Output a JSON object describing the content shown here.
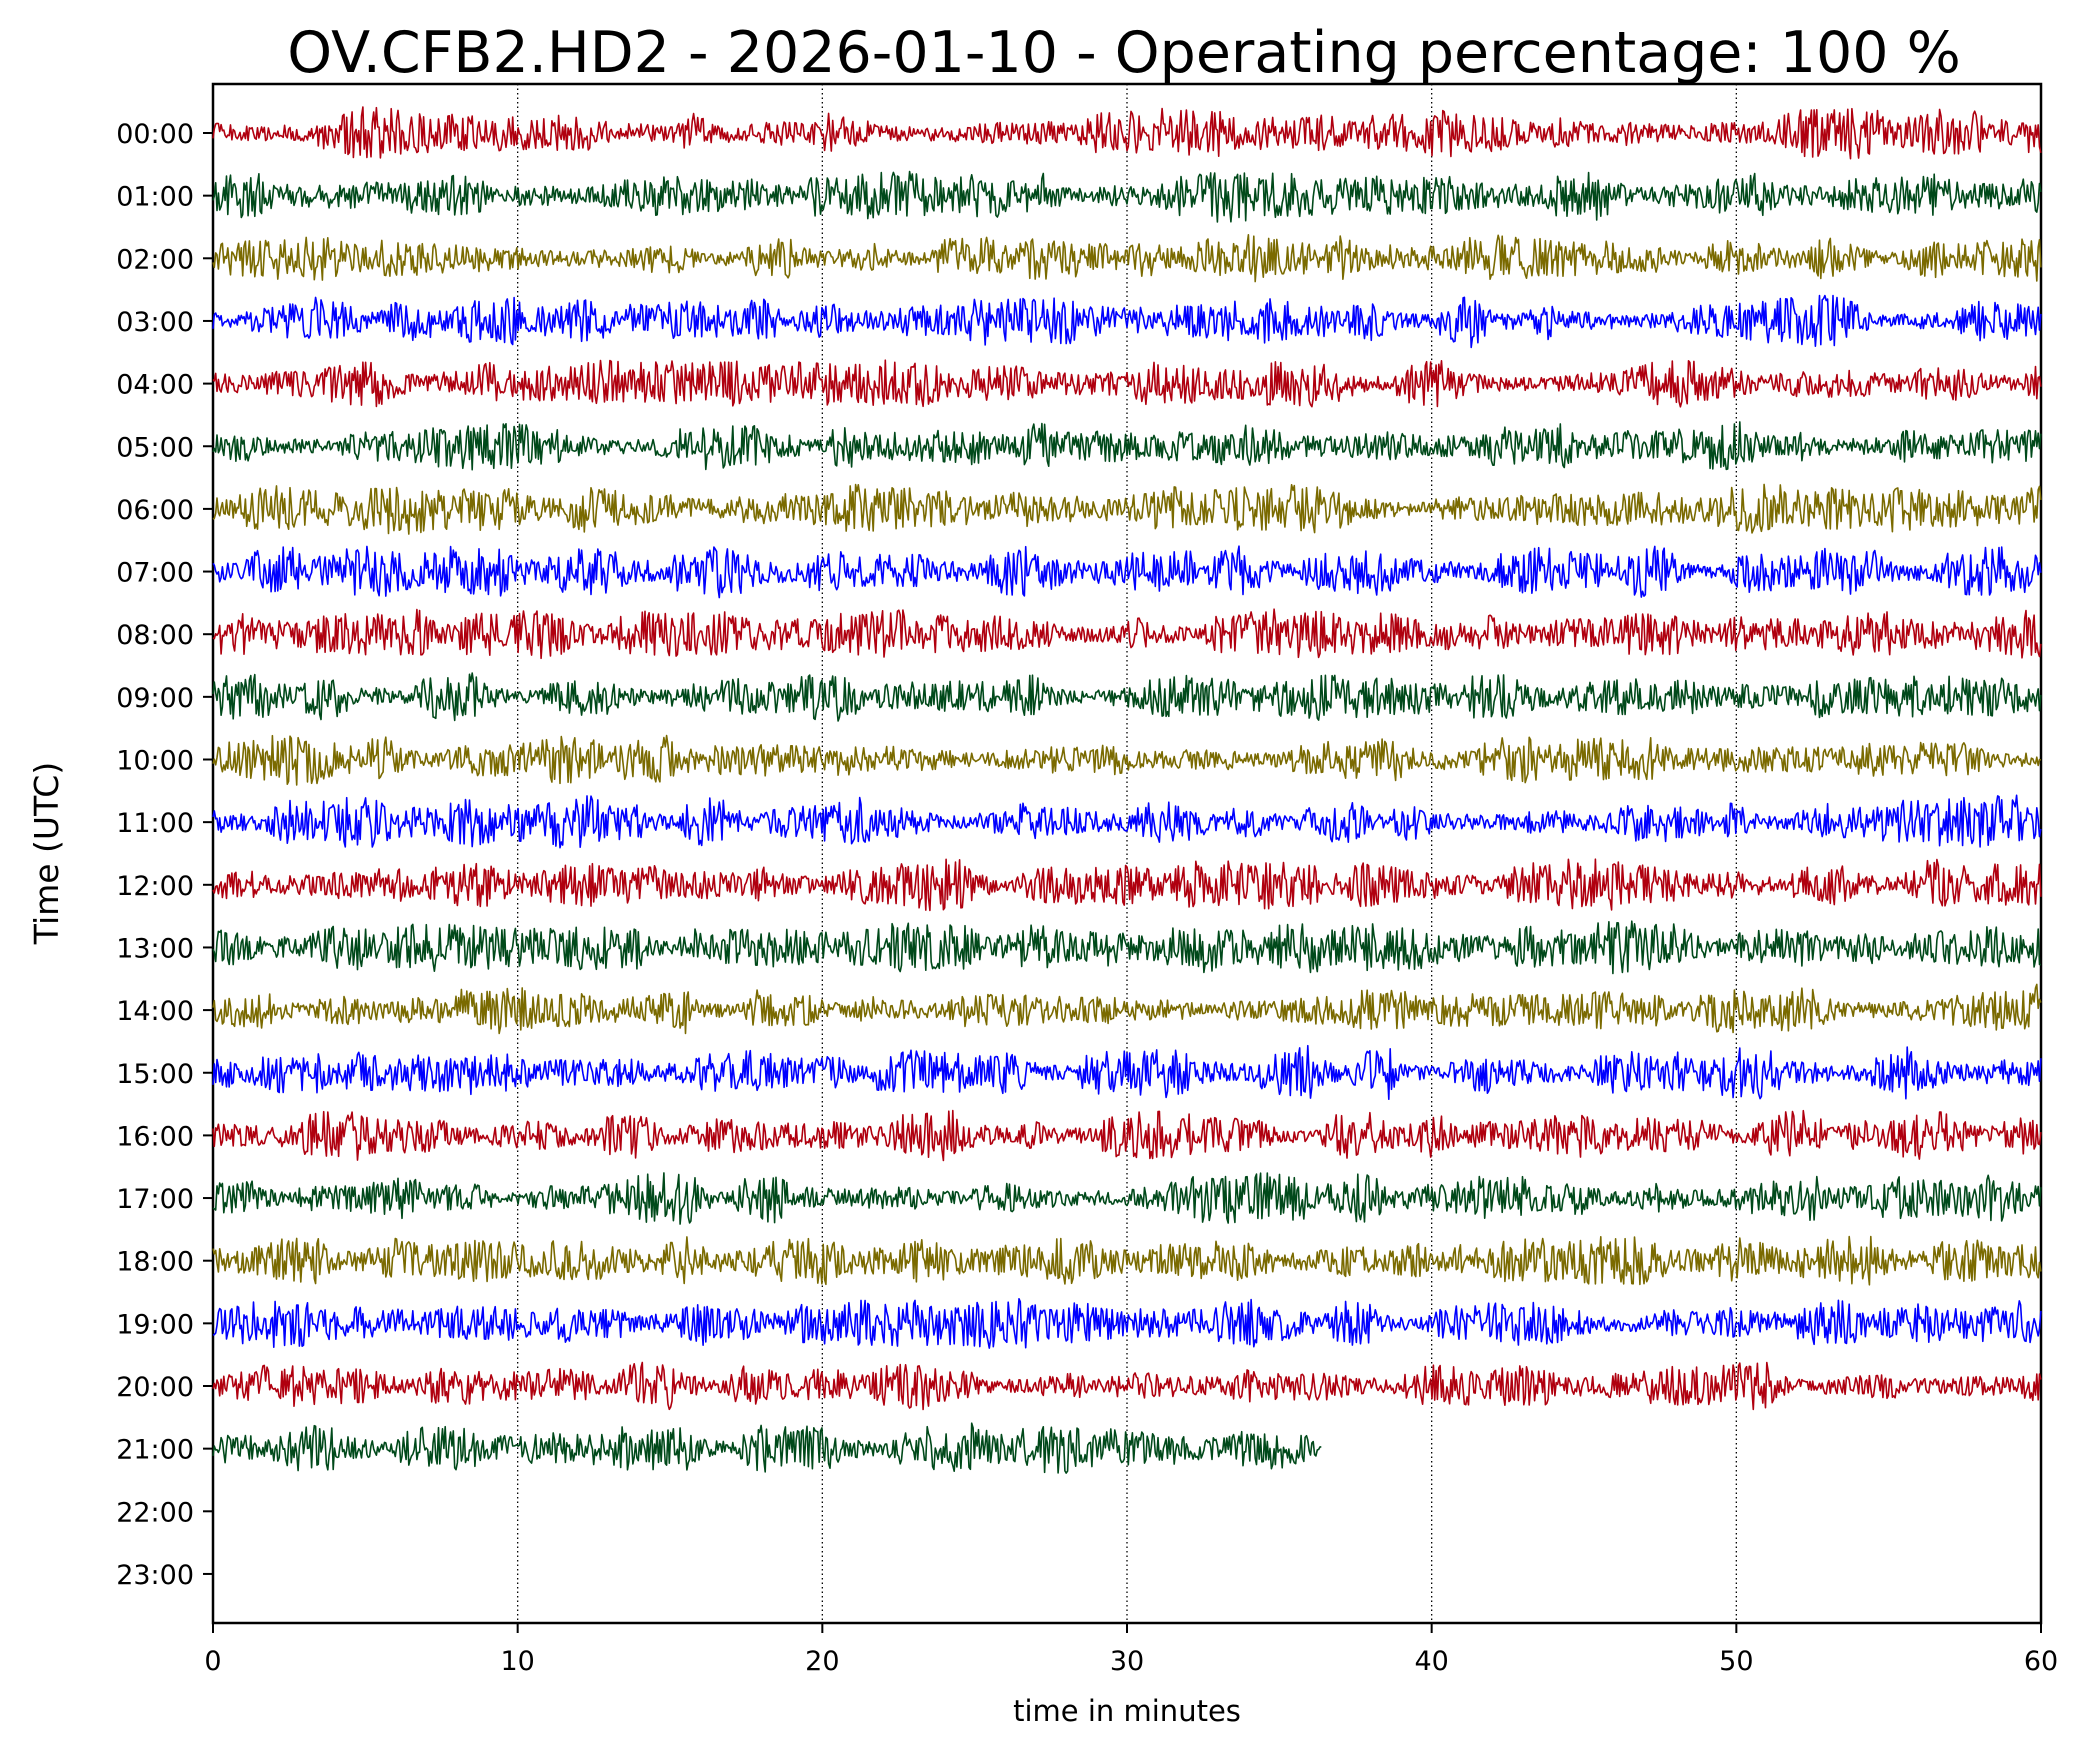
{
  "chart_data": {
    "type": "line",
    "title": "OV.CFB2.HD2 - 2026-01-10 - Operating percentage: 100 %",
    "xlabel": "time in minutes",
    "ylabel": "Time (UTC)",
    "xlim": [
      0,
      60
    ],
    "x_ticks": [
      0,
      10,
      20,
      30,
      40,
      50,
      60
    ],
    "y_tick_labels": [
      "00:00",
      "01:00",
      "02:00",
      "03:00",
      "04:00",
      "05:00",
      "06:00",
      "07:00",
      "08:00",
      "09:00",
      "10:00",
      "11:00",
      "12:00",
      "13:00",
      "14:00",
      "15:00",
      "16:00",
      "17:00",
      "18:00",
      "19:00",
      "20:00",
      "21:00",
      "22:00",
      "23:00"
    ],
    "vertical_gridlines": [
      10,
      20,
      30,
      40,
      50
    ],
    "grid": "dotted vertical",
    "legend": "none",
    "trace_colors": [
      "#b0000f",
      "#00491a",
      "#7a6a00",
      "#0000ff"
    ],
    "series": [
      {
        "hour": "00:00",
        "start_min": 0,
        "end_min": 60,
        "color": "#b0000f"
      },
      {
        "hour": "01:00",
        "start_min": 0,
        "end_min": 60,
        "color": "#00491a"
      },
      {
        "hour": "02:00",
        "start_min": 0,
        "end_min": 60,
        "color": "#7a6a00"
      },
      {
        "hour": "03:00",
        "start_min": 0,
        "end_min": 60,
        "color": "#0000ff"
      },
      {
        "hour": "04:00",
        "start_min": 0,
        "end_min": 60,
        "color": "#b0000f"
      },
      {
        "hour": "05:00",
        "start_min": 0,
        "end_min": 60,
        "color": "#00491a"
      },
      {
        "hour": "06:00",
        "start_min": 0,
        "end_min": 60,
        "color": "#7a6a00"
      },
      {
        "hour": "07:00",
        "start_min": 0,
        "end_min": 60,
        "color": "#0000ff"
      },
      {
        "hour": "08:00",
        "start_min": 0,
        "end_min": 60,
        "color": "#b0000f"
      },
      {
        "hour": "09:00",
        "start_min": 0,
        "end_min": 60,
        "color": "#00491a"
      },
      {
        "hour": "10:00",
        "start_min": 0,
        "end_min": 60,
        "color": "#7a6a00"
      },
      {
        "hour": "11:00",
        "start_min": 0,
        "end_min": 60,
        "color": "#0000ff"
      },
      {
        "hour": "12:00",
        "start_min": 0,
        "end_min": 60,
        "color": "#b0000f"
      },
      {
        "hour": "13:00",
        "start_min": 0,
        "end_min": 60,
        "color": "#00491a"
      },
      {
        "hour": "14:00",
        "start_min": 0,
        "end_min": 60,
        "color": "#7a6a00"
      },
      {
        "hour": "15:00",
        "start_min": 0,
        "end_min": 60,
        "color": "#0000ff"
      },
      {
        "hour": "16:00",
        "start_min": 0,
        "end_min": 60,
        "color": "#b0000f"
      },
      {
        "hour": "17:00",
        "start_min": 0,
        "end_min": 60,
        "color": "#00491a"
      },
      {
        "hour": "18:00",
        "start_min": 0,
        "end_min": 60,
        "color": "#7a6a00"
      },
      {
        "hour": "19:00",
        "start_min": 0,
        "end_min": 60,
        "color": "#0000ff"
      },
      {
        "hour": "20:00",
        "start_min": 0,
        "end_min": 60,
        "color": "#b0000f"
      },
      {
        "hour": "21:00",
        "start_min": 0,
        "end_min": 36.4,
        "color": "#00491a"
      }
    ]
  }
}
